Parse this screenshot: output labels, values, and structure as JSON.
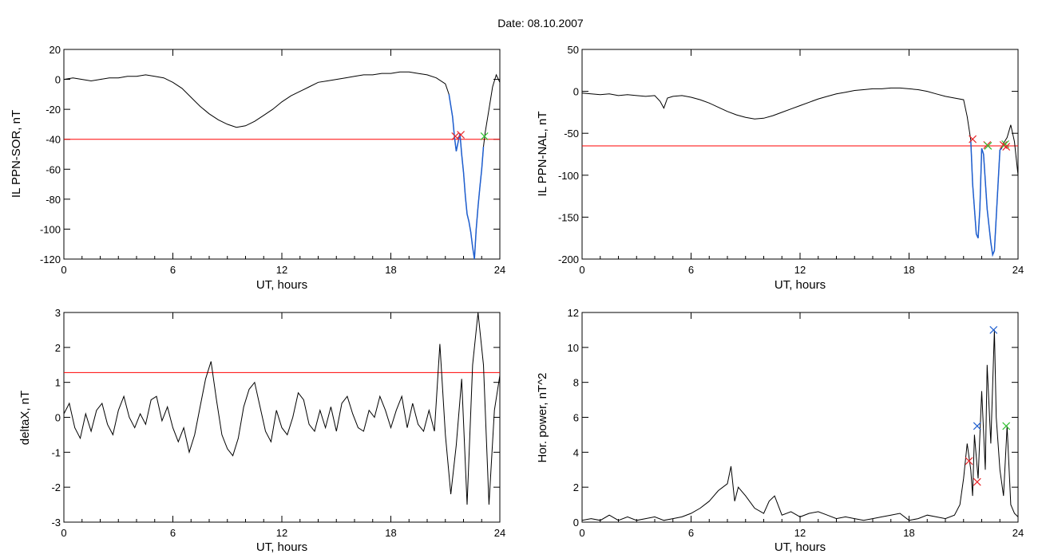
{
  "figure": {
    "title": "Date:  08.10.2007"
  },
  "colors": {
    "trace": "#000000",
    "threshold": "#ff0000",
    "highlight": "#1f5fd0",
    "mark_red": "#e8262a",
    "mark_green": "#33c233",
    "mark_blue": "#1f5fd0"
  },
  "chart_data": [
    {
      "id": "sor",
      "type": "line",
      "xlabel": "UT, hours",
      "ylabel": "IL PPN-SOR, nT",
      "xlim": [
        0,
        24
      ],
      "ylim": [
        -120,
        20
      ],
      "xticks": [
        0,
        6,
        12,
        18,
        24
      ],
      "yticks": [
        -120,
        -100,
        -80,
        -60,
        -40,
        -20,
        0,
        20
      ],
      "threshold": -40,
      "highlight_range": [
        21.2,
        23.1
      ],
      "series": [
        {
          "x": [
            0,
            0.5,
            1,
            1.5,
            2,
            2.5,
            3,
            3.5,
            4,
            4.5,
            5,
            5.5,
            6,
            6.5,
            7,
            7.5,
            8,
            8.5,
            9,
            9.5,
            10,
            10.5,
            11,
            11.5,
            12,
            12.5,
            13,
            13.5,
            14,
            14.5,
            15,
            15.5,
            16,
            16.5,
            17,
            17.5,
            18,
            18.5,
            19,
            19.5,
            20,
            20.5,
            21,
            21.2,
            21.4,
            21.5,
            21.6,
            21.7,
            21.8,
            21.9,
            22,
            22.1,
            22.2,
            22.3,
            22.4,
            22.5,
            22.6,
            22.7,
            22.8,
            22.9,
            23,
            23.1,
            23.2,
            23.4,
            23.6,
            23.8,
            24
          ],
          "values": [
            0,
            1,
            0,
            -1,
            0,
            1,
            1,
            2,
            2,
            3,
            2,
            1,
            -2,
            -6,
            -12,
            -18,
            -23,
            -27,
            -30,
            -32,
            -31,
            -28,
            -24,
            -20,
            -15,
            -11,
            -8,
            -5,
            -2,
            -1,
            0,
            1,
            2,
            3,
            3,
            4,
            4,
            5,
            5,
            4,
            3,
            1,
            -3,
            -10,
            -25,
            -38,
            -48,
            -42,
            -36,
            -50,
            -62,
            -78,
            -90,
            -95,
            -102,
            -112,
            -120,
            -100,
            -85,
            -72,
            -60,
            -45,
            -35,
            -20,
            -5,
            3,
            -2
          ]
        }
      ],
      "markers": [
        {
          "x": 21.55,
          "y": -38,
          "color": "red"
        },
        {
          "x": 21.85,
          "y": -37,
          "color": "red"
        },
        {
          "x": 23.15,
          "y": -38,
          "color": "green"
        }
      ]
    },
    {
      "id": "nal",
      "type": "line",
      "xlabel": "UT, hours",
      "ylabel": "IL PPN-NAL, nT",
      "xlim": [
        0,
        24
      ],
      "ylim": [
        -200,
        50
      ],
      "xticks": [
        0,
        6,
        12,
        18,
        24
      ],
      "yticks": [
        -200,
        -150,
        -100,
        -50,
        0,
        50
      ],
      "threshold": -65,
      "highlight_range": [
        21.4,
        23.1
      ],
      "series": [
        {
          "x": [
            0,
            0.5,
            1,
            1.5,
            2,
            2.5,
            3,
            3.5,
            4,
            4.3,
            4.5,
            4.7,
            5,
            5.5,
            6,
            6.5,
            7,
            7.5,
            8,
            8.5,
            9,
            9.5,
            10,
            10.5,
            11,
            11.5,
            12,
            12.5,
            13,
            13.5,
            14,
            14.5,
            15,
            15.5,
            16,
            16.5,
            17,
            17.5,
            18,
            18.5,
            19,
            19.5,
            20,
            20.5,
            21,
            21.2,
            21.4,
            21.5,
            21.7,
            21.8,
            21.9,
            22,
            22.1,
            22.3,
            22.5,
            22.6,
            22.7,
            22.8,
            22.9,
            23,
            23.1,
            23.2,
            23.4,
            23.6,
            23.8,
            24
          ],
          "values": [
            -2,
            -3,
            -4,
            -3,
            -5,
            -4,
            -5,
            -6,
            -5,
            -12,
            -20,
            -8,
            -6,
            -5,
            -7,
            -10,
            -14,
            -19,
            -24,
            -28,
            -31,
            -33,
            -32,
            -29,
            -25,
            -21,
            -17,
            -13,
            -9,
            -6,
            -3,
            -1,
            1,
            2,
            3,
            3,
            4,
            4,
            3,
            2,
            0,
            -3,
            -6,
            -8,
            -10,
            -30,
            -58,
            -110,
            -170,
            -175,
            -140,
            -68,
            -75,
            -140,
            -180,
            -195,
            -190,
            -150,
            -110,
            -70,
            -68,
            -62,
            -55,
            -40,
            -60,
            -100
          ]
        }
      ],
      "markers": [
        {
          "x": 21.5,
          "y": -57,
          "color": "red"
        },
        {
          "x": 22.3,
          "y": -64,
          "color": "red"
        },
        {
          "x": 22.35,
          "y": -65,
          "color": "green"
        },
        {
          "x": 23.2,
          "y": -64,
          "color": "red"
        },
        {
          "x": 23.3,
          "y": -63,
          "color": "green"
        },
        {
          "x": 23.35,
          "y": -66,
          "color": "red"
        }
      ]
    },
    {
      "id": "deltax",
      "type": "line",
      "xlabel": "UT, hours",
      "ylabel": "deltaX, nT",
      "xlim": [
        0,
        24
      ],
      "ylim": [
        -3,
        3
      ],
      "xticks": [
        0,
        6,
        12,
        18,
        24
      ],
      "yticks": [
        -3,
        -2,
        -1,
        0,
        1,
        2,
        3
      ],
      "threshold": 1.28,
      "series": [
        {
          "x": [
            0,
            0.3,
            0.6,
            0.9,
            1.2,
            1.5,
            1.8,
            2.1,
            2.4,
            2.7,
            3,
            3.3,
            3.6,
            3.9,
            4.2,
            4.5,
            4.8,
            5.1,
            5.4,
            5.7,
            6,
            6.3,
            6.6,
            6.9,
            7.2,
            7.5,
            7.8,
            8.1,
            8.4,
            8.7,
            9,
            9.3,
            9.6,
            9.9,
            10.2,
            10.5,
            10.8,
            11.1,
            11.4,
            11.7,
            12,
            12.3,
            12.6,
            12.9,
            13.2,
            13.5,
            13.8,
            14.1,
            14.4,
            14.7,
            15,
            15.3,
            15.6,
            15.9,
            16.2,
            16.5,
            16.8,
            17.1,
            17.4,
            17.7,
            18,
            18.3,
            18.6,
            18.9,
            19.2,
            19.5,
            19.8,
            20.1,
            20.4,
            20.7,
            21,
            21.3,
            21.6,
            21.9,
            22.2,
            22.5,
            22.8,
            23.1,
            23.4,
            23.7,
            24
          ],
          "values": [
            0.1,
            0.4,
            -0.3,
            -0.6,
            0.1,
            -0.4,
            0.2,
            0.4,
            -0.2,
            -0.5,
            0.2,
            0.6,
            0,
            -0.3,
            0.1,
            -0.2,
            0.5,
            0.6,
            -0.1,
            0.3,
            -0.3,
            -0.7,
            -0.3,
            -1,
            -0.5,
            0.3,
            1.1,
            1.6,
            0.5,
            -0.5,
            -0.9,
            -1.1,
            -0.6,
            0.3,
            0.8,
            1,
            0.3,
            -0.4,
            -0.7,
            0.2,
            -0.3,
            -0.5,
            0,
            0.7,
            0.5,
            -0.2,
            -0.4,
            0.2,
            -0.3,
            0.3,
            -0.4,
            0.4,
            0.6,
            0.1,
            -0.3,
            -0.4,
            0.2,
            0,
            0.6,
            0.2,
            -0.3,
            0.2,
            0.6,
            -0.3,
            0.4,
            -0.2,
            -0.4,
            0.2,
            -0.4,
            2.1,
            -0.5,
            -2.2,
            -0.8,
            1.1,
            -2.5,
            1.5,
            3,
            1.5,
            -2.5,
            0.2,
            1.2
          ]
        }
      ]
    },
    {
      "id": "power",
      "type": "line",
      "xlabel": "UT, hours",
      "ylabel": "Hor. power, nT^2",
      "xlim": [
        0,
        24
      ],
      "ylim": [
        0,
        12
      ],
      "xticks": [
        0,
        6,
        12,
        18,
        24
      ],
      "yticks": [
        0,
        2,
        4,
        6,
        8,
        10,
        12
      ],
      "series": [
        {
          "x": [
            0,
            0.5,
            1,
            1.5,
            2,
            2.5,
            3,
            3.5,
            4,
            4.5,
            5,
            5.5,
            6,
            6.5,
            7,
            7.5,
            8,
            8.2,
            8.4,
            8.6,
            9,
            9.5,
            10,
            10.3,
            10.6,
            11,
            11.5,
            12,
            12.5,
            13,
            13.5,
            14,
            14.5,
            15,
            15.5,
            16,
            16.5,
            17,
            17.5,
            18,
            18.5,
            19,
            19.5,
            20,
            20.5,
            20.8,
            21,
            21.2,
            21.4,
            21.5,
            21.6,
            21.8,
            22,
            22.2,
            22.3,
            22.5,
            22.7,
            22.8,
            23,
            23.2,
            23.4,
            23.6,
            23.8,
            24
          ],
          "values": [
            0.1,
            0.2,
            0.1,
            0.4,
            0.1,
            0.3,
            0.1,
            0.2,
            0.3,
            0.1,
            0.2,
            0.3,
            0.5,
            0.8,
            1.2,
            1.8,
            2.2,
            3.2,
            1.2,
            2,
            1.5,
            0.8,
            0.5,
            1.2,
            1.5,
            0.4,
            0.6,
            0.3,
            0.5,
            0.6,
            0.4,
            0.2,
            0.3,
            0.2,
            0.1,
            0.2,
            0.3,
            0.4,
            0.5,
            0.1,
            0.2,
            0.4,
            0.3,
            0.2,
            0.4,
            1,
            2.5,
            4.5,
            3,
            1.5,
            5,
            2.5,
            7.5,
            3,
            9,
            4.5,
            11,
            6,
            3,
            1.5,
            5.5,
            1,
            0.5,
            0.3
          ]
        }
      ],
      "markers": [
        {
          "x": 21.3,
          "y": 3.5,
          "color": "red"
        },
        {
          "x": 21.75,
          "y": 2.3,
          "color": "red"
        },
        {
          "x": 21.75,
          "y": 5.5,
          "color": "blue"
        },
        {
          "x": 22.65,
          "y": 11,
          "color": "blue"
        },
        {
          "x": 23.35,
          "y": 5.5,
          "color": "green"
        }
      ]
    }
  ]
}
